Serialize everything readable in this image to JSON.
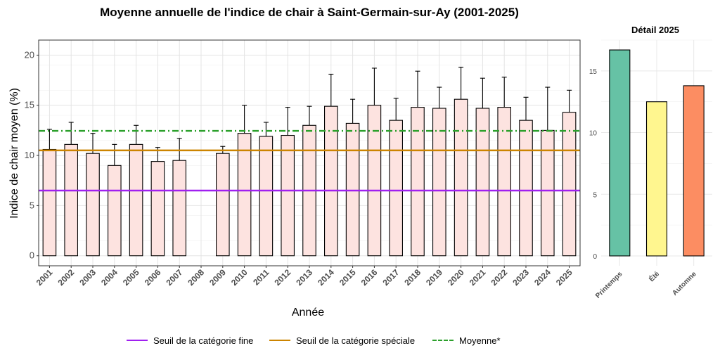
{
  "chart_data": [
    {
      "type": "bar",
      "title": "Moyenne annuelle de l'indice de chair à Saint-Germain-sur-Ay (2001-2025)",
      "xlabel": "Année",
      "ylabel": "Indice de chair moyen (%)",
      "ylim": [
        -1,
        21.5
      ],
      "yticks": [
        0,
        5,
        10,
        15,
        20
      ],
      "grid": true,
      "categories": [
        "2001",
        "2002",
        "2003",
        "2004",
        "2005",
        "2006",
        "2007",
        "2008",
        "2009",
        "2010",
        "2011",
        "2012",
        "2013",
        "2014",
        "2015",
        "2016",
        "2017",
        "2018",
        "2019",
        "2020",
        "2021",
        "2022",
        "2023",
        "2024",
        "2025"
      ],
      "values": [
        10.6,
        11.1,
        10.2,
        9.0,
        11.1,
        9.4,
        9.5,
        null,
        10.2,
        12.2,
        11.9,
        12.0,
        13.0,
        14.9,
        13.2,
        15.0,
        13.5,
        14.8,
        14.7,
        15.6,
        14.7,
        14.8,
        13.5,
        12.5,
        14.3
      ],
      "error_upper": [
        12.6,
        13.3,
        12.2,
        11.1,
        13.0,
        10.8,
        11.7,
        null,
        10.9,
        15.0,
        13.3,
        14.8,
        14.9,
        18.1,
        15.6,
        18.7,
        15.7,
        18.4,
        16.8,
        18.8,
        17.7,
        17.8,
        15.8,
        16.8,
        16.5
      ],
      "reference_lines": [
        {
          "name": "Seuil de la catégorie fine",
          "value": 6.5,
          "color": "#a020f0",
          "style": "solid"
        },
        {
          "name": "Seuil de la catégorie spéciale",
          "value": 10.5,
          "color": "#cc8400",
          "style": "solid"
        },
        {
          "name": "Moyenne*",
          "value": 12.45,
          "color": "#2ca02c",
          "style": "dashdot"
        }
      ],
      "bar_color": "#fde3e0",
      "legend_position": "bottom"
    },
    {
      "type": "bar",
      "title": "Détail 2025",
      "categories": [
        "Printemps",
        "Été",
        "Automne"
      ],
      "values": [
        16.7,
        12.5,
        13.8
      ],
      "colors": [
        "#66c2a5",
        "#fff68f",
        "#fc8d62"
      ],
      "ylim": [
        -0.8,
        17.5
      ],
      "yticks": [
        0,
        5,
        10,
        15
      ],
      "grid": true
    }
  ]
}
